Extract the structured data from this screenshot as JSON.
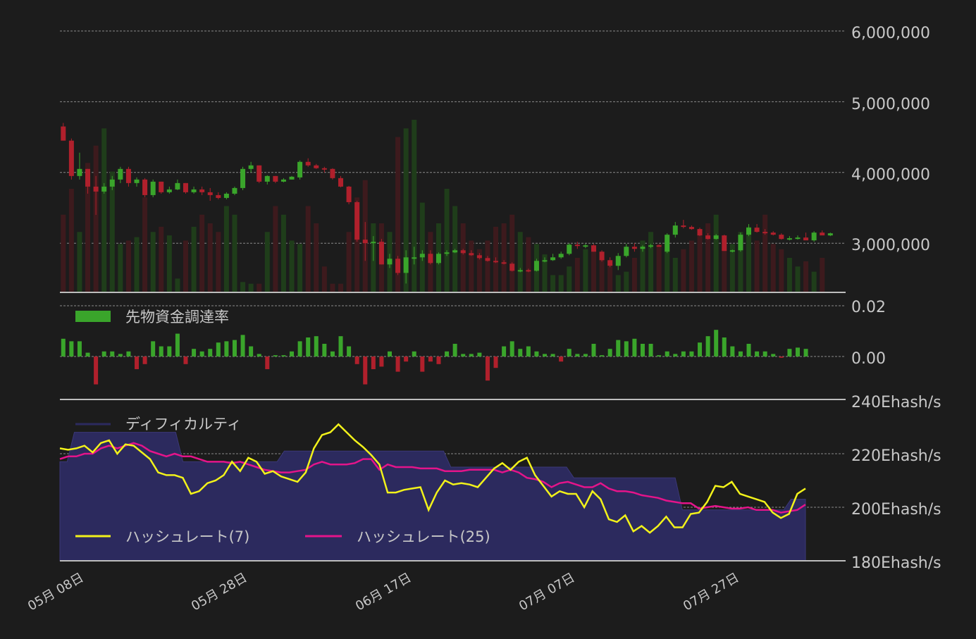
{
  "colors": {
    "background": "#1c1c1c",
    "grid": "#8a8a8a",
    "up": "#3aa52b",
    "down": "#b0202c",
    "up_volume": "#1f3d1a",
    "down_volume": "#3d1a1d",
    "difficulty_fill": "#2c2a5e",
    "hash7": "#f2f21a",
    "hash25": "#e4148a",
    "text": "#c8c8c8"
  },
  "chart_data": [
    {
      "type": "candlestick",
      "name": "price",
      "x_labels": [
        "05月 08日",
        "05月 28日",
        "06月 17日",
        "07月 07日",
        "07月 27日"
      ],
      "y_ticks": [
        "6,000,000",
        "5,000,000",
        "4,000,000",
        "3,000,000"
      ],
      "ylim": [
        2300000,
        6000000
      ],
      "grid": true,
      "candles": [
        [
          4650000,
          4700000,
          4450000,
          4450000
        ],
        [
          4450000,
          4480000,
          3900000,
          3950000
        ],
        [
          3950000,
          4280000,
          3900000,
          4050000
        ],
        [
          4050000,
          4050000,
          3700000,
          3800000
        ],
        [
          3800000,
          3950000,
          3400000,
          3730000
        ],
        [
          3730000,
          3850000,
          3700000,
          3800000
        ],
        [
          3800000,
          3950000,
          3750000,
          3900000
        ],
        [
          3900000,
          4080000,
          3850000,
          4050000
        ],
        [
          4050000,
          4080000,
          3800000,
          3850000
        ],
        [
          3850000,
          3930000,
          3800000,
          3900000
        ],
        [
          3900000,
          3920000,
          3650000,
          3680000
        ],
        [
          3680000,
          3900000,
          3650000,
          3870000
        ],
        [
          3870000,
          3870000,
          3700000,
          3720000
        ],
        [
          3720000,
          3800000,
          3700000,
          3760000
        ],
        [
          3760000,
          3900000,
          3750000,
          3850000
        ],
        [
          3850000,
          3850000,
          3700000,
          3720000
        ],
        [
          3720000,
          3800000,
          3700000,
          3760000
        ],
        [
          3760000,
          3800000,
          3680000,
          3720000
        ],
        [
          3720000,
          3780000,
          3600000,
          3680000
        ],
        [
          3680000,
          3720000,
          3620000,
          3640000
        ],
        [
          3640000,
          3720000,
          3620000,
          3700000
        ],
        [
          3700000,
          3800000,
          3680000,
          3780000
        ],
        [
          3780000,
          4080000,
          3750000,
          4050000
        ],
        [
          4050000,
          4150000,
          4000000,
          4100000
        ],
        [
          4100000,
          4100000,
          3850000,
          3870000
        ],
        [
          3870000,
          3960000,
          3830000,
          3950000
        ],
        [
          3950000,
          3950000,
          3850000,
          3870000
        ],
        [
          3870000,
          3920000,
          3860000,
          3900000
        ],
        [
          3900000,
          3950000,
          3900000,
          3940000
        ],
        [
          3930000,
          4170000,
          3900000,
          4150000
        ],
        [
          4150000,
          4200000,
          4080000,
          4100000
        ],
        [
          4100000,
          4120000,
          4050000,
          4060000
        ],
        [
          4060000,
          4080000,
          4000000,
          4050000
        ],
        [
          4050000,
          4060000,
          3900000,
          3920000
        ],
        [
          3920000,
          3950000,
          3790000,
          3800000
        ],
        [
          3800000,
          3810000,
          3550000,
          3580000
        ],
        [
          3580000,
          3600000,
          3020000,
          3050000
        ],
        [
          3050000,
          3300000,
          2750000,
          3000000
        ],
        [
          3000000,
          3100000,
          2750000,
          3020000
        ],
        [
          3020000,
          3060000,
          2700000,
          2700000
        ],
        [
          2700000,
          2850000,
          2650000,
          2780000
        ],
        [
          2780000,
          2820000,
          2550000,
          2580000
        ],
        [
          2580000,
          2900000,
          2430000,
          2800000
        ],
        [
          2800000,
          2950000,
          2700000,
          2800000
        ],
        [
          2800000,
          2900000,
          2750000,
          2850000
        ],
        [
          2850000,
          2900000,
          2700000,
          2720000
        ],
        [
          2720000,
          2870000,
          2700000,
          2850000
        ],
        [
          2850000,
          2900000,
          2820000,
          2870000
        ],
        [
          2870000,
          2920000,
          2860000,
          2900000
        ],
        [
          2900000,
          2920000,
          2840000,
          2860000
        ],
        [
          2860000,
          2900000,
          2820000,
          2830000
        ],
        [
          2830000,
          2860000,
          2770000,
          2790000
        ],
        [
          2790000,
          2820000,
          2740000,
          2750000
        ],
        [
          2750000,
          2800000,
          2720000,
          2730000
        ],
        [
          2730000,
          2760000,
          2700000,
          2710000
        ],
        [
          2710000,
          2730000,
          2600000,
          2610000
        ],
        [
          2610000,
          2650000,
          2590000,
          2620000
        ],
        [
          2620000,
          2640000,
          2590000,
          2610000
        ],
        [
          2610000,
          2780000,
          2600000,
          2750000
        ],
        [
          2750000,
          2800000,
          2730000,
          2760000
        ],
        [
          2760000,
          2850000,
          2750000,
          2800000
        ],
        [
          2800000,
          2880000,
          2780000,
          2850000
        ],
        [
          2850000,
          3000000,
          2830000,
          2980000
        ],
        [
          2980000,
          3020000,
          2920000,
          2960000
        ],
        [
          2960000,
          2990000,
          2930000,
          2970000
        ],
        [
          2970000,
          2990000,
          2880000,
          2880000
        ],
        [
          2880000,
          2900000,
          2740000,
          2760000
        ],
        [
          2760000,
          2800000,
          2660000,
          2680000
        ],
        [
          2680000,
          2860000,
          2620000,
          2820000
        ],
        [
          2820000,
          2990000,
          2800000,
          2950000
        ],
        [
          2950000,
          3000000,
          2880000,
          2920000
        ],
        [
          2920000,
          2970000,
          2880000,
          2950000
        ],
        [
          2950000,
          2990000,
          2930000,
          2970000
        ],
        [
          2970000,
          2980000,
          2950000,
          2960000
        ],
        [
          2880000,
          3140000,
          2860000,
          3120000
        ],
        [
          3120000,
          3300000,
          3080000,
          3250000
        ],
        [
          3250000,
          3330000,
          3210000,
          3230000
        ],
        [
          3230000,
          3250000,
          3190000,
          3200000
        ],
        [
          3200000,
          3220000,
          3100000,
          3110000
        ],
        [
          3110000,
          3140000,
          3050000,
          3060000
        ],
        [
          3060000,
          3130000,
          3050000,
          3110000
        ],
        [
          3110000,
          3120000,
          2890000,
          2890000
        ],
        [
          2890000,
          2910000,
          2870000,
          2900000
        ],
        [
          2900000,
          3150000,
          2880000,
          3120000
        ],
        [
          3120000,
          3270000,
          3100000,
          3220000
        ],
        [
          3220000,
          3270000,
          3150000,
          3160000
        ],
        [
          3160000,
          3200000,
          3120000,
          3150000
        ],
        [
          3150000,
          3170000,
          3110000,
          3120000
        ],
        [
          3120000,
          3140000,
          3050000,
          3060000
        ],
        [
          3060000,
          3100000,
          3040000,
          3070000
        ],
        [
          3070000,
          3110000,
          3050000,
          3080000
        ],
        [
          3080000,
          3150000,
          3050000,
          3040000
        ],
        [
          3040000,
          3170000,
          3020000,
          3150000
        ],
        [
          3150000,
          3180000,
          3120000,
          3110000
        ],
        [
          3110000,
          3150000,
          3100000,
          3140000
        ]
      ],
      "volume": [
        0.45,
        0.6,
        0.35,
        0.75,
        0.85,
        0.95,
        0.7,
        0.28,
        0.3,
        0.32,
        0.55,
        0.35,
        0.38,
        0.33,
        0.08,
        0.3,
        0.38,
        0.45,
        0.4,
        0.35,
        0.5,
        0.45,
        0.06,
        0.05,
        0.05,
        0.35,
        0.5,
        0.45,
        0.3,
        0.28,
        0.5,
        0.4,
        0.15,
        0.05,
        0.05,
        0.35,
        0.55,
        0.65,
        0.4,
        0.4,
        0.35,
        0.9,
        0.95,
        1.0,
        0.52,
        0.35,
        0.4,
        0.6,
        0.5,
        0.4,
        0.3,
        0.25,
        0.3,
        0.38,
        0.4,
        0.45,
        0.35,
        0.32,
        0.28,
        0.22,
        0.1,
        0.1,
        0.15,
        0.2,
        0.25,
        0.25,
        0.2,
        0.15,
        0.1,
        0.12,
        0.2,
        0.3,
        0.35,
        0.28,
        0.25,
        0.2,
        0.25,
        0.3,
        0.35,
        0.4,
        0.45,
        0.25,
        0.28,
        0.35,
        0.38,
        0.3,
        0.45,
        0.28,
        0.25,
        0.2,
        0.15,
        0.18,
        0.12,
        0.2
      ]
    },
    {
      "type": "bar",
      "name": "先物資金調達率",
      "y_ticks": [
        "0.02",
        "0.00"
      ],
      "ylim": [
        -0.013,
        0.02
      ],
      "values": [
        0.007,
        0.006,
        0.006,
        0.0015,
        -0.011,
        0.002,
        0.002,
        0.001,
        0.002,
        -0.005,
        -0.003,
        0.006,
        0.004,
        0.004,
        0.009,
        -0.003,
        0.003,
        0.002,
        0.003,
        0.0055,
        0.006,
        0.0065,
        0.0085,
        0.004,
        0.001,
        -0.005,
        0.0005,
        0.0005,
        0.002,
        0.006,
        0.0075,
        0.008,
        0.005,
        0.002,
        0.008,
        0.004,
        -0.003,
        -0.011,
        -0.005,
        -0.004,
        0.002,
        -0.006,
        -0.002,
        0.002,
        -0.006,
        -0.002,
        -0.003,
        0.002,
        0.005,
        0.001,
        0.001,
        0.0015,
        -0.0095,
        -0.0045,
        0.004,
        0.006,
        0.003,
        0.004,
        0.002,
        0.001,
        0.001,
        -0.002,
        0.003,
        0.001,
        0.001,
        0.005,
        0.0005,
        0.003,
        0.0065,
        0.006,
        0.007,
        0.005,
        0.005,
        0.0005,
        0.002,
        0.001,
        0.002,
        0.002,
        0.0055,
        0.008,
        0.0105,
        0.0075,
        0.004,
        0.002,
        0.005,
        0.002,
        0.002,
        0.001,
        -0.0005,
        0.003,
        0.0035,
        0.003
      ],
      "grid": true
    },
    {
      "type": "line",
      "name": "hashrate",
      "y_ticks": [
        "240Ehash/s",
        "220Ehash/s",
        "200Ehash/s",
        "180Ehash/s"
      ],
      "ylim": [
        180,
        240
      ],
      "series": [
        {
          "name": "ディフィカルティ",
          "kind": "area",
          "values": [
            217,
            217,
            228,
            228,
            228,
            228,
            228,
            228,
            228,
            228,
            228,
            228,
            228,
            228,
            228,
            228,
            228,
            217,
            217,
            217,
            217,
            217,
            217,
            217,
            217,
            217,
            217,
            217,
            217,
            217,
            217,
            221,
            221,
            221,
            221,
            221,
            221,
            221,
            221,
            221,
            221,
            221,
            221,
            221,
            221,
            221,
            221,
            221,
            221,
            221,
            221,
            221,
            221,
            221,
            215,
            215,
            215,
            215,
            215,
            215,
            215,
            215,
            215,
            215,
            215,
            215,
            215,
            215,
            215,
            215,
            215,
            211,
            211,
            211,
            211,
            211,
            211,
            211,
            211,
            211,
            211,
            211,
            211,
            211,
            211,
            211,
            199,
            199,
            199,
            199,
            199,
            199,
            199,
            199,
            199,
            199,
            199,
            199,
            199,
            199,
            199,
            203,
            203,
            203
          ]
        },
        {
          "name": "ハッシュレート(7)",
          "values": [
            222,
            221.5,
            222,
            223,
            220.5,
            224,
            225,
            220,
            223.5,
            223,
            220.5,
            218,
            213,
            212,
            212,
            211,
            205,
            206,
            209,
            210,
            212,
            217,
            213.5,
            218.5,
            217,
            212.5,
            213.5,
            211.5,
            210.5,
            209.5,
            213,
            222,
            227,
            228,
            231,
            228,
            225,
            222.5,
            219.5,
            216,
            205.5,
            205.5,
            206.5,
            207,
            207.5,
            199,
            205.5,
            210,
            208.5,
            209,
            208.5,
            207.5,
            211,
            214.5,
            216.5,
            214,
            217,
            218.5,
            212,
            208,
            204,
            206,
            205,
            205,
            200,
            206,
            203,
            195.5,
            194.5,
            197,
            191,
            193,
            190.5,
            193,
            196.5,
            192.5,
            192.5,
            197.5,
            198,
            202,
            208,
            207.5,
            209.5,
            205,
            204,
            203,
            202,
            198,
            196,
            197.5,
            205,
            207
          ]
        },
        {
          "name": "ハッシュレート(25)",
          "values": [
            218,
            219,
            219,
            220,
            220,
            222,
            223,
            222,
            223,
            224,
            223,
            221,
            220,
            219,
            220,
            219,
            219,
            218,
            217,
            217,
            217,
            216.5,
            217,
            216,
            215,
            214,
            213.5,
            213,
            213,
            213.5,
            214,
            216,
            217,
            216,
            216,
            216,
            216.5,
            218,
            218,
            214,
            216,
            215,
            215,
            215,
            214.5,
            214.5,
            214.5,
            213.5,
            213.5,
            213.5,
            214,
            214,
            214,
            214,
            213,
            214,
            213,
            211,
            210.5,
            209.5,
            207.5,
            209,
            209.5,
            208.5,
            207.5,
            207.5,
            209,
            207,
            206,
            206,
            205.5,
            204.5,
            204,
            203.5,
            202.5,
            202,
            201.5,
            201.5,
            199.5,
            200,
            200.5,
            200,
            199.5,
            199.5,
            200,
            199,
            199,
            199,
            198,
            198.5,
            199,
            201
          ]
        }
      ],
      "grid": true
    }
  ],
  "legend": {
    "funding": "先物資金調達率",
    "difficulty": "ディフィカルティ",
    "hash7": "ハッシュレート(7)",
    "hash25": "ハッシュレート(25)"
  },
  "axis": {
    "price_ticks": [
      "6,000,000",
      "5,000,000",
      "4,000,000",
      "3,000,000"
    ],
    "funding_ticks": [
      "0.02",
      "0.00"
    ],
    "hash_ticks": [
      "240Ehash/s",
      "220Ehash/s",
      "200Ehash/s",
      "180Ehash/s"
    ],
    "dates": [
      "05月 08日",
      "05月 28日",
      "06月 17日",
      "07月 07日",
      "07月 27日"
    ]
  }
}
